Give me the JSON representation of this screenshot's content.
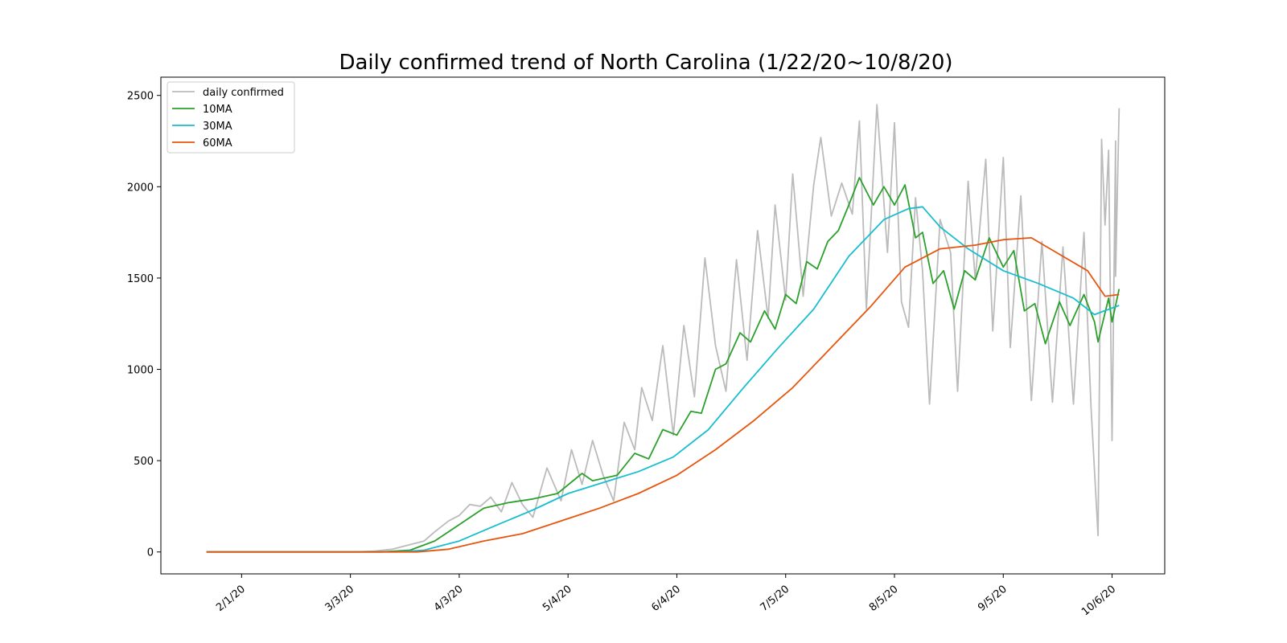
{
  "chart_data": {
    "type": "line",
    "title": "Daily confirmed trend of North Carolina (1/22/20~10/8/20)",
    "xlabel": "",
    "ylabel": "",
    "start_date": "2020-01-22",
    "end_date": "2020-10-08",
    "x_ticks": [
      "2/1/20",
      "3/3/20",
      "4/3/20",
      "5/4/20",
      "6/4/20",
      "7/5/20",
      "8/5/20",
      "9/5/20",
      "10/6/20"
    ],
    "y_ticks": [
      0,
      500,
      1000,
      1500,
      2000,
      2500
    ],
    "ylim": [
      -120,
      2600
    ],
    "grid": false,
    "legend_position": "upper-left",
    "series": [
      {
        "name": "daily confirmed",
        "color": "#bbbbbb",
        "anchors": [
          [
            "2020-01-22",
            0
          ],
          [
            "2020-03-05",
            0
          ],
          [
            "2020-03-10",
            5
          ],
          [
            "2020-03-15",
            15
          ],
          [
            "2020-03-20",
            40
          ],
          [
            "2020-03-24",
            60
          ],
          [
            "2020-03-27",
            110
          ],
          [
            "2020-03-31",
            170
          ],
          [
            "2020-04-03",
            200
          ],
          [
            "2020-04-06",
            260
          ],
          [
            "2020-04-09",
            250
          ],
          [
            "2020-04-12",
            300
          ],
          [
            "2020-04-15",
            220
          ],
          [
            "2020-04-18",
            380
          ],
          [
            "2020-04-21",
            260
          ],
          [
            "2020-04-24",
            190
          ],
          [
            "2020-04-28",
            460
          ],
          [
            "2020-05-02",
            280
          ],
          [
            "2020-05-05",
            560
          ],
          [
            "2020-05-08",
            370
          ],
          [
            "2020-05-11",
            610
          ],
          [
            "2020-05-14",
            420
          ],
          [
            "2020-05-17",
            280
          ],
          [
            "2020-05-20",
            710
          ],
          [
            "2020-05-23",
            560
          ],
          [
            "2020-05-25",
            900
          ],
          [
            "2020-05-28",
            720
          ],
          [
            "2020-05-31",
            1130
          ],
          [
            "2020-06-03",
            640
          ],
          [
            "2020-06-06",
            1240
          ],
          [
            "2020-06-09",
            850
          ],
          [
            "2020-06-12",
            1610
          ],
          [
            "2020-06-15",
            1130
          ],
          [
            "2020-06-18",
            880
          ],
          [
            "2020-06-21",
            1600
          ],
          [
            "2020-06-24",
            1050
          ],
          [
            "2020-06-27",
            1760
          ],
          [
            "2020-06-30",
            1280
          ],
          [
            "2020-07-02",
            1900
          ],
          [
            "2020-07-05",
            1380
          ],
          [
            "2020-07-07",
            2070
          ],
          [
            "2020-07-10",
            1400
          ],
          [
            "2020-07-13",
            2010
          ],
          [
            "2020-07-15",
            2270
          ],
          [
            "2020-07-18",
            1840
          ],
          [
            "2020-07-21",
            2020
          ],
          [
            "2020-07-24",
            1850
          ],
          [
            "2020-07-26",
            2360
          ],
          [
            "2020-07-28",
            1330
          ],
          [
            "2020-07-31",
            2450
          ],
          [
            "2020-08-03",
            1640
          ],
          [
            "2020-08-05",
            2350
          ],
          [
            "2020-08-07",
            1370
          ],
          [
            "2020-08-09",
            1230
          ],
          [
            "2020-08-11",
            1940
          ],
          [
            "2020-08-13",
            1540
          ],
          [
            "2020-08-15",
            810
          ],
          [
            "2020-08-18",
            1820
          ],
          [
            "2020-08-21",
            1640
          ],
          [
            "2020-08-23",
            880
          ],
          [
            "2020-08-26",
            2030
          ],
          [
            "2020-08-28",
            1490
          ],
          [
            "2020-08-31",
            2150
          ],
          [
            "2020-09-02",
            1210
          ],
          [
            "2020-09-05",
            2160
          ],
          [
            "2020-09-07",
            1120
          ],
          [
            "2020-09-10",
            1950
          ],
          [
            "2020-09-13",
            830
          ],
          [
            "2020-09-16",
            1700
          ],
          [
            "2020-09-19",
            820
          ],
          [
            "2020-09-22",
            1670
          ],
          [
            "2020-09-25",
            810
          ],
          [
            "2020-09-28",
            1750
          ],
          [
            "2020-09-30",
            790
          ],
          [
            "2020-10-02",
            90
          ],
          [
            "2020-10-03",
            2260
          ],
          [
            "2020-10-04",
            1790
          ],
          [
            "2020-10-05",
            2200
          ],
          [
            "2020-10-06",
            610
          ],
          [
            "2020-10-07",
            2250
          ],
          [
            "2020-10-07",
            1510
          ],
          [
            "2020-10-08",
            2430
          ]
        ]
      },
      {
        "name": "10MA",
        "color": "#2ca02c",
        "anchors": [
          [
            "2020-01-22",
            0
          ],
          [
            "2020-03-12",
            0
          ],
          [
            "2020-03-20",
            10
          ],
          [
            "2020-03-27",
            60
          ],
          [
            "2020-04-03",
            150
          ],
          [
            "2020-04-10",
            240
          ],
          [
            "2020-04-17",
            270
          ],
          [
            "2020-04-24",
            290
          ],
          [
            "2020-05-01",
            320
          ],
          [
            "2020-05-08",
            430
          ],
          [
            "2020-05-11",
            390
          ],
          [
            "2020-05-18",
            420
          ],
          [
            "2020-05-23",
            540
          ],
          [
            "2020-05-27",
            510
          ],
          [
            "2020-05-31",
            670
          ],
          [
            "2020-06-04",
            640
          ],
          [
            "2020-06-08",
            770
          ],
          [
            "2020-06-11",
            760
          ],
          [
            "2020-06-15",
            1000
          ],
          [
            "2020-06-18",
            1030
          ],
          [
            "2020-06-22",
            1200
          ],
          [
            "2020-06-25",
            1150
          ],
          [
            "2020-06-29",
            1320
          ],
          [
            "2020-07-02",
            1220
          ],
          [
            "2020-07-05",
            1410
          ],
          [
            "2020-07-08",
            1360
          ],
          [
            "2020-07-11",
            1590
          ],
          [
            "2020-07-14",
            1550
          ],
          [
            "2020-07-17",
            1700
          ],
          [
            "2020-07-20",
            1760
          ],
          [
            "2020-07-23",
            1900
          ],
          [
            "2020-07-26",
            2050
          ],
          [
            "2020-07-30",
            1900
          ],
          [
            "2020-08-02",
            2000
          ],
          [
            "2020-08-05",
            1900
          ],
          [
            "2020-08-08",
            2010
          ],
          [
            "2020-08-11",
            1720
          ],
          [
            "2020-08-13",
            1750
          ],
          [
            "2020-08-16",
            1470
          ],
          [
            "2020-08-19",
            1540
          ],
          [
            "2020-08-22",
            1330
          ],
          [
            "2020-08-25",
            1540
          ],
          [
            "2020-08-28",
            1490
          ],
          [
            "2020-09-01",
            1720
          ],
          [
            "2020-09-05",
            1560
          ],
          [
            "2020-09-08",
            1650
          ],
          [
            "2020-09-11",
            1320
          ],
          [
            "2020-09-14",
            1360
          ],
          [
            "2020-09-17",
            1140
          ],
          [
            "2020-09-21",
            1370
          ],
          [
            "2020-09-24",
            1240
          ],
          [
            "2020-09-28",
            1410
          ],
          [
            "2020-10-01",
            1260
          ],
          [
            "2020-10-02",
            1150
          ],
          [
            "2020-10-05",
            1390
          ],
          [
            "2020-10-06",
            1260
          ],
          [
            "2020-10-08",
            1440
          ]
        ]
      },
      {
        "name": "30MA",
        "color": "#17becf",
        "anchors": [
          [
            "2020-01-22",
            0
          ],
          [
            "2020-03-16",
            0
          ],
          [
            "2020-03-24",
            10
          ],
          [
            "2020-04-03",
            60
          ],
          [
            "2020-04-14",
            150
          ],
          [
            "2020-04-24",
            230
          ],
          [
            "2020-05-04",
            320
          ],
          [
            "2020-05-14",
            380
          ],
          [
            "2020-05-24",
            440
          ],
          [
            "2020-06-03",
            520
          ],
          [
            "2020-06-13",
            670
          ],
          [
            "2020-06-23",
            900
          ],
          [
            "2020-07-03",
            1120
          ],
          [
            "2020-07-13",
            1330
          ],
          [
            "2020-07-23",
            1620
          ],
          [
            "2020-08-02",
            1820
          ],
          [
            "2020-08-09",
            1880
          ],
          [
            "2020-08-13",
            1890
          ],
          [
            "2020-08-18",
            1780
          ],
          [
            "2020-08-26",
            1660
          ],
          [
            "2020-09-05",
            1540
          ],
          [
            "2020-09-15",
            1470
          ],
          [
            "2020-09-25",
            1390
          ],
          [
            "2020-10-01",
            1300
          ],
          [
            "2020-10-08",
            1350
          ]
        ]
      },
      {
        "name": "60MA",
        "color": "#e6550d",
        "anchors": [
          [
            "2020-01-22",
            0
          ],
          [
            "2020-03-22",
            0
          ],
          [
            "2020-03-31",
            15
          ],
          [
            "2020-04-10",
            60
          ],
          [
            "2020-04-21",
            100
          ],
          [
            "2020-05-02",
            170
          ],
          [
            "2020-05-13",
            240
          ],
          [
            "2020-05-24",
            320
          ],
          [
            "2020-06-04",
            420
          ],
          [
            "2020-06-15",
            560
          ],
          [
            "2020-06-26",
            720
          ],
          [
            "2020-07-07",
            900
          ],
          [
            "2020-07-18",
            1120
          ],
          [
            "2020-07-29",
            1340
          ],
          [
            "2020-08-08",
            1560
          ],
          [
            "2020-08-18",
            1660
          ],
          [
            "2020-08-28",
            1680
          ],
          [
            "2020-09-05",
            1710
          ],
          [
            "2020-09-13",
            1720
          ],
          [
            "2020-09-21",
            1630
          ],
          [
            "2020-09-29",
            1540
          ],
          [
            "2020-10-04",
            1400
          ],
          [
            "2020-10-08",
            1410
          ]
        ]
      }
    ]
  }
}
